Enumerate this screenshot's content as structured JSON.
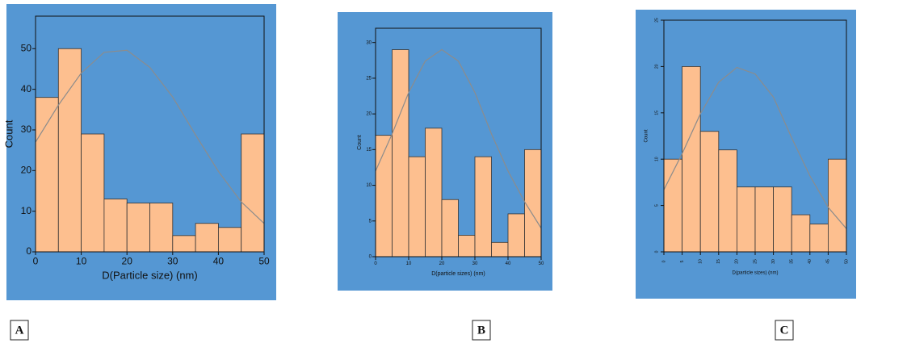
{
  "chart_data": [
    {
      "type": "histogram",
      "panel_label": "A",
      "x_label": "D(Particle size) (nm)",
      "y_label": "Count",
      "bins": [
        0,
        5,
        10,
        15,
        20,
        25,
        30,
        35,
        40,
        45,
        50
      ],
      "values": [
        38,
        50,
        29,
        13,
        12,
        12,
        4,
        7,
        6,
        29
      ],
      "color": "#fdbf8f",
      "background": "#5597d3",
      "curve": {
        "color": "#8c8c8c",
        "x": [
          0,
          5,
          10,
          15,
          20,
          25,
          30,
          35,
          40,
          45,
          50
        ],
        "values": [
          27,
          36.1,
          44,
          49.1,
          49.6,
          45.4,
          38.1,
          28.8,
          19.8,
          12.3,
          7
        ]
      },
      "xlim": [
        0,
        50
      ],
      "xticks": [
        0,
        10,
        20,
        30,
        40,
        50
      ],
      "ylim": [
        0,
        58
      ],
      "yticks": [
        0,
        10,
        20,
        30,
        40,
        50
      ]
    },
    {
      "type": "histogram",
      "panel_label": "B",
      "x_label": "D(particle sizes) (nm)",
      "y_label": "Count",
      "bins": [
        0,
        5,
        10,
        15,
        20,
        25,
        30,
        35,
        40,
        45,
        50
      ],
      "values": [
        17,
        29,
        14,
        18,
        8,
        3,
        14,
        2,
        6,
        15
      ],
      "color": "#fdbf8f",
      "background": "#5597d3",
      "curve": {
        "color": "#8c8c8c",
        "x": [
          0,
          5,
          10,
          15,
          20,
          25,
          30,
          35,
          40,
          45,
          50
        ],
        "values": [
          12,
          17.2,
          23,
          27.4,
          29,
          27.4,
          23,
          17.2,
          12,
          7.7,
          4
        ]
      },
      "xlim": [
        0,
        50
      ],
      "xticks": [
        0,
        10,
        20,
        30,
        40,
        50
      ],
      "ylim": [
        0,
        32
      ],
      "yticks": [
        0,
        5,
        10,
        15,
        20,
        25,
        30
      ]
    },
    {
      "type": "histogram",
      "panel_label": "C",
      "x_label": "D(particle sizes) (nm)",
      "y_label": "Count",
      "bins": [
        0,
        5,
        10,
        15,
        20,
        25,
        30,
        35,
        40,
        45,
        50
      ],
      "values": [
        10,
        20,
        13,
        11,
        7,
        7,
        7,
        4,
        3,
        10
      ],
      "color": "#fdbf8f",
      "background": "#5597d3",
      "curve": {
        "color": "#8c8c8c",
        "x": [
          0,
          5,
          10,
          15,
          20,
          25,
          30,
          35,
          40,
          45,
          50
        ],
        "values": [
          6.7,
          10.6,
          14.9,
          18.3,
          19.9,
          19.2,
          16.7,
          12.3,
          8.2,
          4.8,
          2.5
        ]
      },
      "xlim": [
        0,
        50
      ],
      "xticks": [
        0,
        5,
        10,
        15,
        20,
        25,
        30,
        35,
        40,
        45,
        50
      ],
      "ylim": [
        0,
        25
      ],
      "yticks": [
        0,
        5,
        10,
        15,
        20,
        25
      ]
    }
  ]
}
